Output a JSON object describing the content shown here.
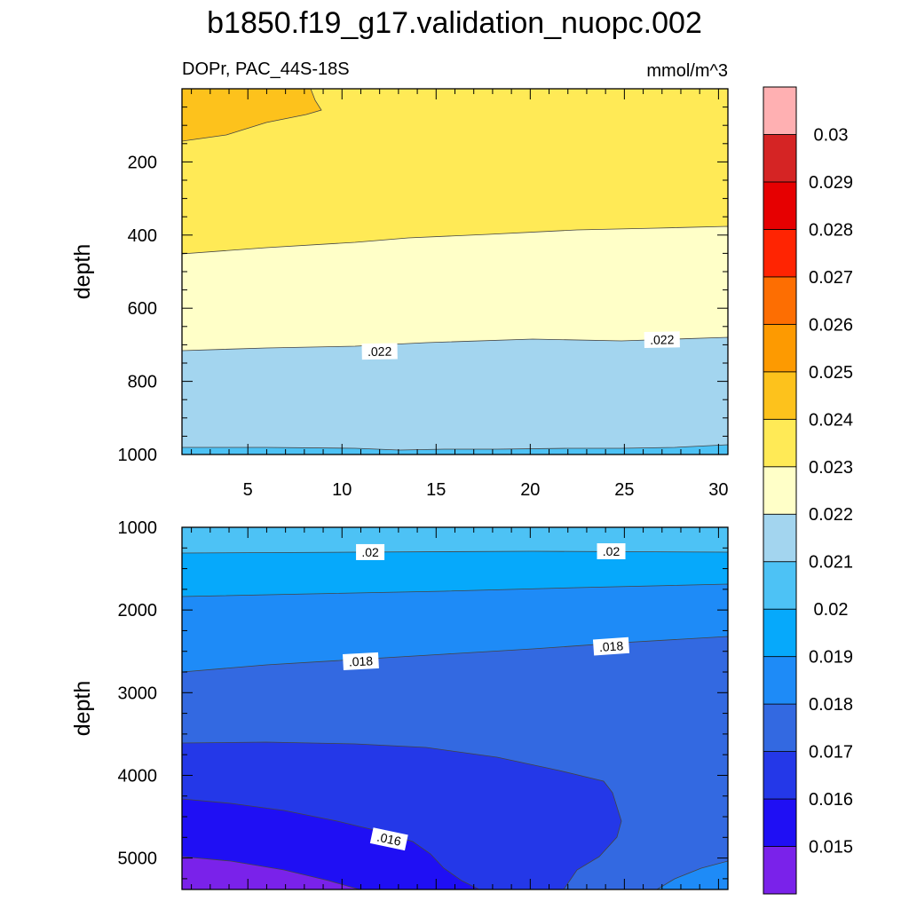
{
  "chart_data": {
    "type": "contour",
    "title": "b1850.f19_g17.validation_nuopc.002",
    "subtitle_left": "DOPr, PAC_44S-18S",
    "subtitle_right": "mmol/m^3",
    "ylabel": "depth",
    "x_ticks": [
      5,
      10,
      15,
      20,
      25,
      30
    ],
    "x_tick_labels": [
      "5",
      "10",
      "15",
      "20",
      "25",
      "30"
    ],
    "xlim": [
      1.5,
      30.5
    ],
    "panels": [
      {
        "name": "upper",
        "ylim": [
          1000,
          0
        ],
        "y_ticks": [
          200,
          400,
          600,
          800,
          1000
        ],
        "y_tick_labels": [
          "200",
          "400",
          "600",
          "800",
          "1000"
        ],
        "contour_labels": [
          {
            "text": ".022",
            "x": 12.0,
            "y": 718,
            "angle": -1
          },
          {
            "text": ".022",
            "x": 27.0,
            "y": 686,
            "angle": -1
          }
        ]
      },
      {
        "name": "lower",
        "ylim": [
          5380,
          1000
        ],
        "y_ticks": [
          1000,
          2000,
          3000,
          4000,
          5000
        ],
        "y_tick_labels": [
          "1000",
          "2000",
          "3000",
          "4000",
          "5000"
        ],
        "contour_labels": [
          {
            "text": ".02",
            "x": 11.5,
            "y": 1300,
            "angle": 0
          },
          {
            "text": ".02",
            "x": 24.3,
            "y": 1290,
            "angle": 0
          },
          {
            "text": ".018",
            "x": 11.0,
            "y": 2620,
            "angle": -3
          },
          {
            "text": ".018",
            "x": 24.3,
            "y": 2440,
            "angle": -4
          },
          {
            "text": ".016",
            "x": 12.5,
            "y": 4770,
            "angle": 12
          }
        ]
      }
    ],
    "colorbar": {
      "levels": [
        "0.015",
        "0.016",
        "0.017",
        "0.018",
        "0.019",
        "0.02",
        "0.021",
        "0.022",
        "0.023",
        "0.024",
        "0.025",
        "0.026",
        "0.027",
        "0.028",
        "0.029",
        "0.03"
      ],
      "colors": [
        "#7a22ea",
        "#1f0ff4",
        "#2438e8",
        "#3369e1",
        "#1e8bf7",
        "#06a9fb",
        "#4dc2f5",
        "#a3d5ef",
        "#ffffc8",
        "#ffea56",
        "#fdc21c",
        "#fd9a01",
        "#fd6e02",
        "#ff2402",
        "#e60001",
        "#d52424",
        "#ffb0b2"
      ]
    }
  }
}
